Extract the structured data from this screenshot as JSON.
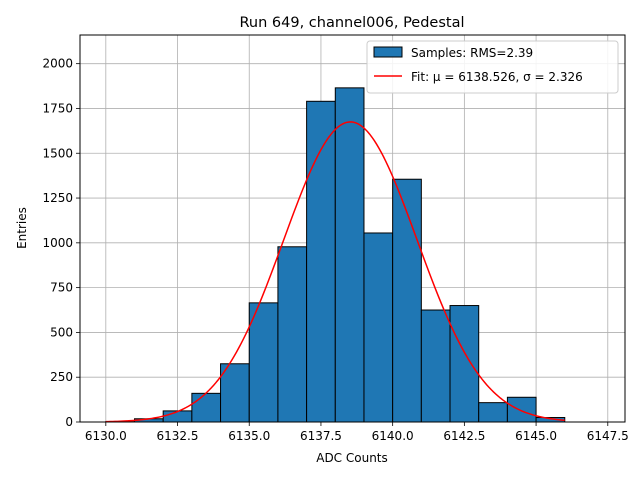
{
  "chart_data": {
    "type": "bar",
    "title": "Run 649, channel006, Pedestal",
    "xlabel": "ADC Counts",
    "ylabel": "Entries",
    "xlim": [
      6129.1,
      6148.1
    ],
    "ylim": [
      0,
      2160
    ],
    "xticks": [
      "6130.0",
      "6132.5",
      "6135.0",
      "6137.5",
      "6140.0",
      "6142.5",
      "6145.0",
      "6147.5"
    ],
    "yticks": [
      "0",
      "250",
      "500",
      "750",
      "1000",
      "1250",
      "1500",
      "1750",
      "2000"
    ],
    "grid": true,
    "legend_position": "top-right",
    "bin_width": 1,
    "bins": [
      {
        "x0": 6130,
        "value": 2
      },
      {
        "x0": 6131,
        "value": 18
      },
      {
        "x0": 6132,
        "value": 62
      },
      {
        "x0": 6133,
        "value": 160
      },
      {
        "x0": 6134,
        "value": 325
      },
      {
        "x0": 6135,
        "value": 665
      },
      {
        "x0": 6136,
        "value": 978
      },
      {
        "x0": 6137,
        "value": 1790
      },
      {
        "x0": 6138,
        "value": 1865
      },
      {
        "x0": 6139,
        "value": 1055
      },
      {
        "x0": 6140,
        "value": 1355
      },
      {
        "x0": 6141,
        "value": 625
      },
      {
        "x0": 6142,
        "value": 650
      },
      {
        "x0": 6143,
        "value": 108
      },
      {
        "x0": 6144,
        "value": 138
      },
      {
        "x0": 6145,
        "value": 25
      }
    ],
    "series": [
      {
        "name": "Samples: RMS=2.39",
        "kind": "histogram",
        "color": "#1f77b4",
        "edgecolor": "#000000"
      },
      {
        "name": "Fit: μ = 6138.526, σ = 2.326",
        "kind": "gaussian",
        "color": "#ff0000",
        "mu": 6138.526,
        "sigma": 2.326,
        "amplitude": 1675,
        "x_range": [
          6130,
          6146
        ]
      }
    ]
  }
}
